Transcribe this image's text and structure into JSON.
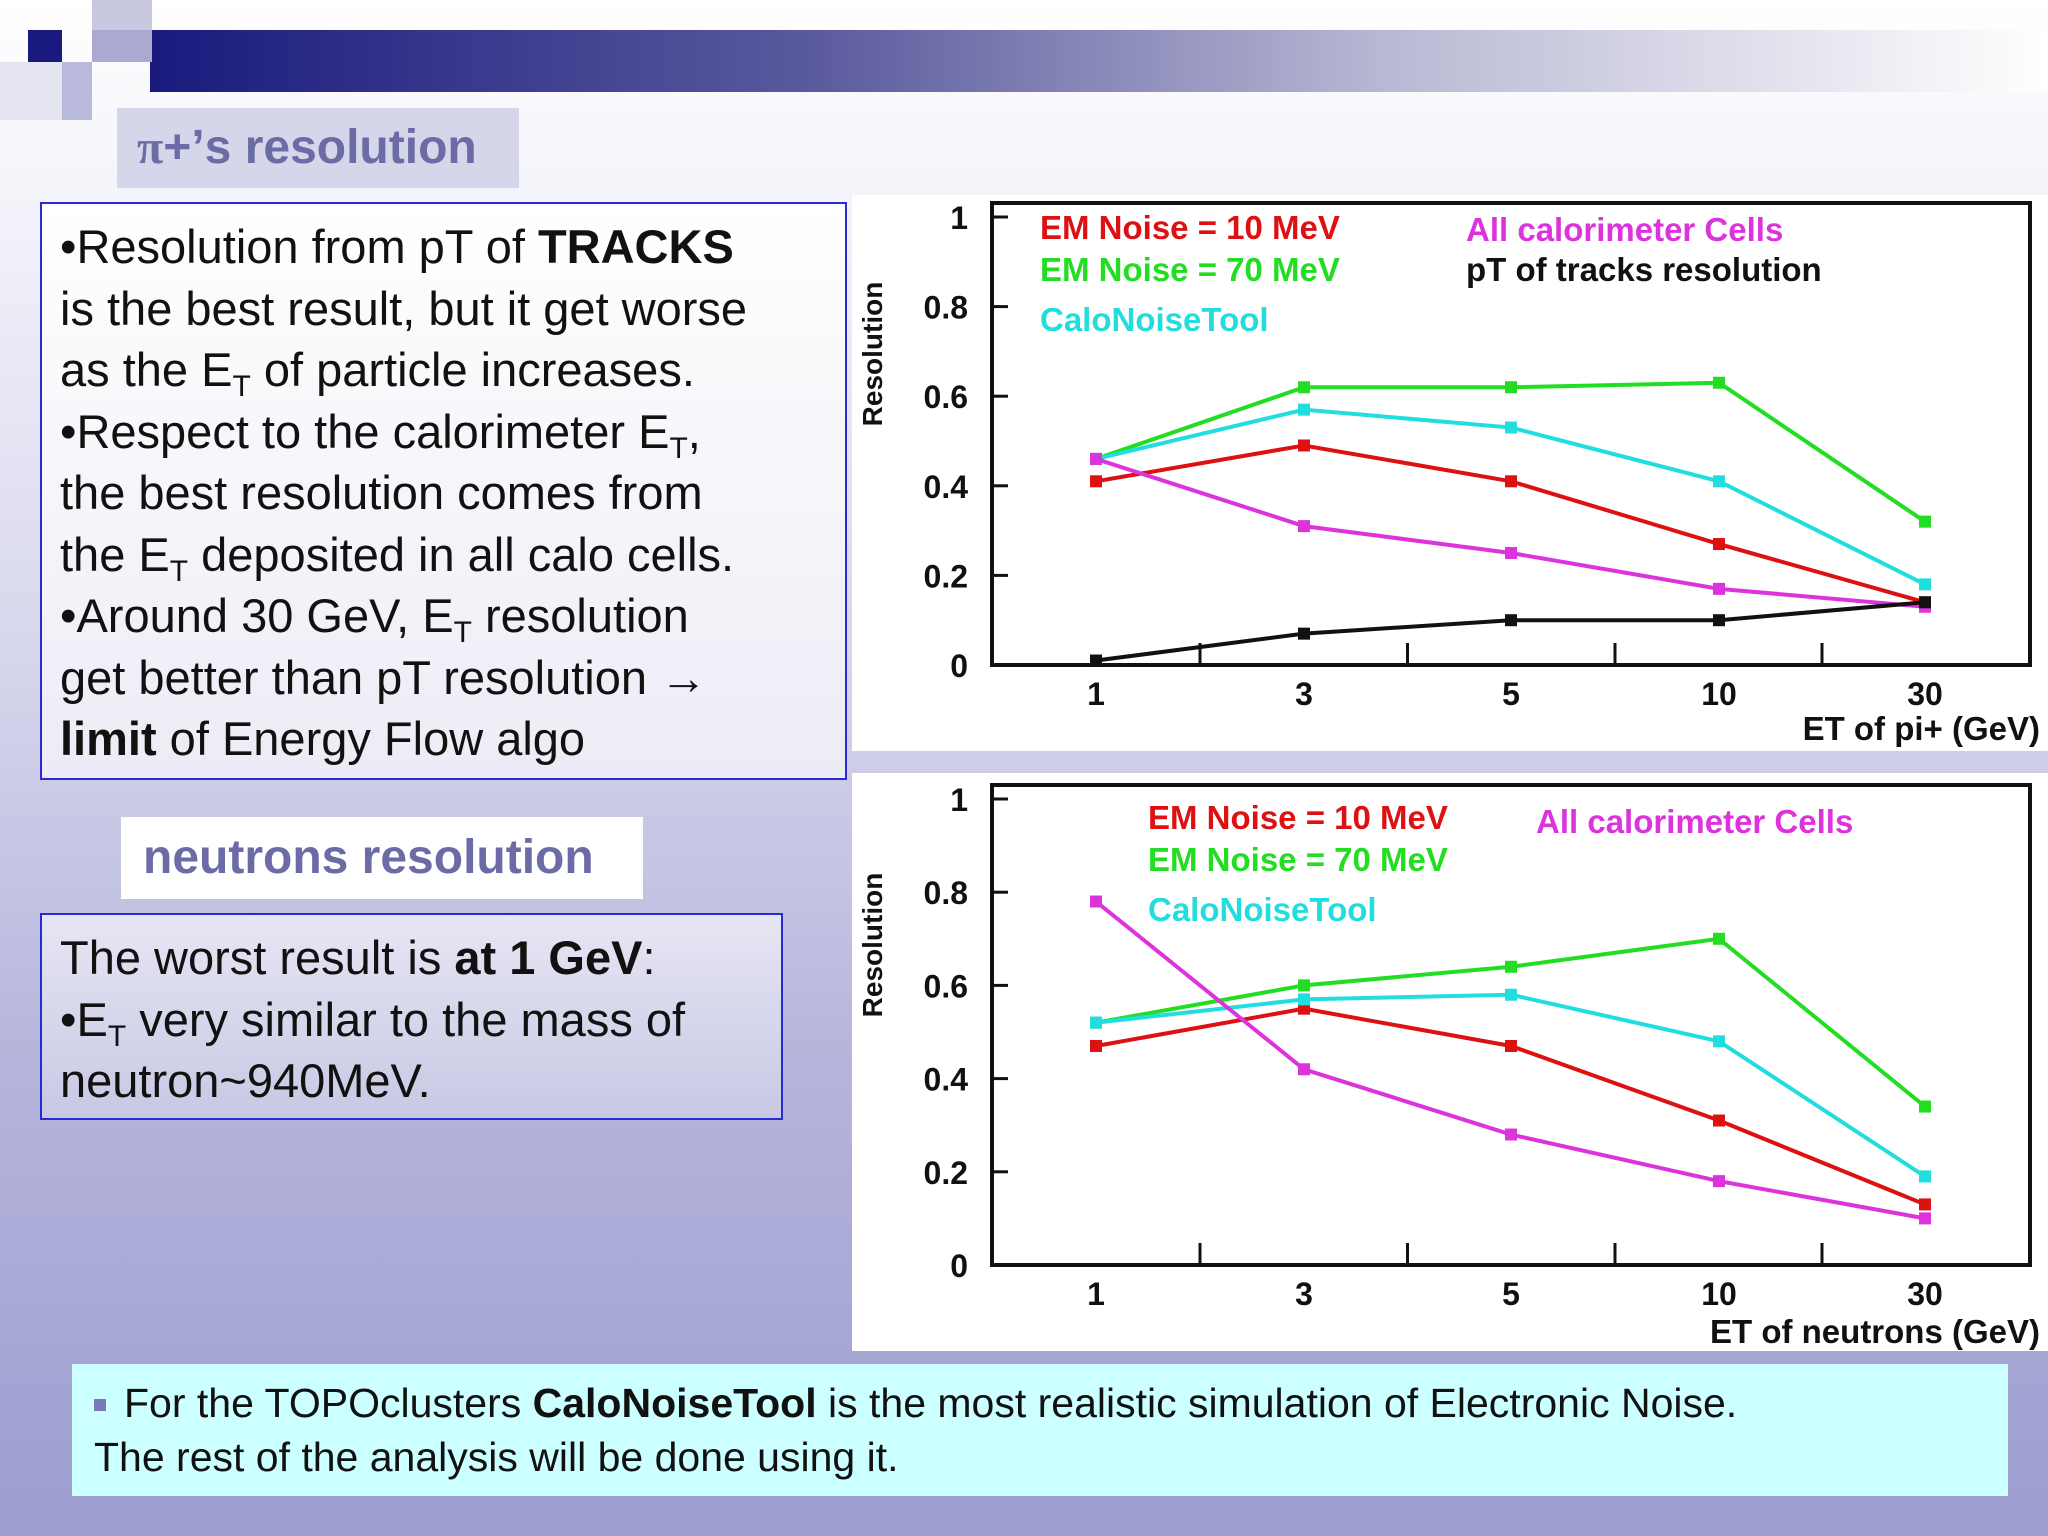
{
  "slide": {
    "title1_symbol": "π",
    "title1_rest": "+’s resolution",
    "title2": "neutrons resolution",
    "box1": {
      "l1a": "•Resolution from pT of ",
      "l1b": "TRACKS",
      "l2": "is the best result, but it get worse",
      "l3a": "as the E",
      "l3sub": "T",
      "l3b": " of particle increases.",
      "l4a": "•Respect to the calorimeter E",
      "l4sub": "T",
      "l4b": ",",
      "l5": "the best resolution comes from",
      "l6a": "the E",
      "l6sub": "T",
      "l6b": " deposited in all calo cells.",
      "l7a": "•Around 30 GeV, E",
      "l7sub": "T",
      "l7b": " resolution",
      "l8": "get better than pT resolution →",
      "l9a": "limit",
      "l9b": " of Energy Flow algo"
    },
    "box2": {
      "l1a": "The worst result is ",
      "l1b": "at 1 GeV",
      "l1c": ":",
      "l2a": "•E",
      "l2sub": "T",
      "l2b": " very similar to the mass of",
      "l3": "neutron~940MeV."
    },
    "bottom": {
      "a": "For the TOPOclusters ",
      "b": "CaloNoiseTool",
      "c": " is the most realistic simulation of Electronic Noise.",
      "line2": "The rest of the analysis will be done using it."
    }
  },
  "chart_data": [
    {
      "type": "line",
      "xlabel": "ET of pi+ (GeV)",
      "ylabel": "Resolution",
      "categories": [
        "1",
        "3",
        "5",
        "10",
        "30"
      ],
      "ylim": [
        0,
        1
      ],
      "yticks": [
        "0",
        "0.2",
        "0.4",
        "0.6",
        "0.8",
        "1"
      ],
      "legend_placement": "top",
      "series": [
        {
          "name": "EM Noise = 10 MeV",
          "color": "#dd1111",
          "values": [
            0.41,
            0.49,
            0.41,
            0.27,
            0.14
          ]
        },
        {
          "name": "EM Noise = 70 MeV",
          "color": "#22dd22",
          "values": [
            0.46,
            0.62,
            0.62,
            0.63,
            0.32
          ]
        },
        {
          "name": "CaloNoiseTool",
          "color": "#22dddd",
          "values": [
            0.46,
            0.57,
            0.53,
            0.41,
            0.18
          ]
        },
        {
          "name": "All calorimeter Cells",
          "color": "#dd33dd",
          "values": [
            0.46,
            0.31,
            0.25,
            0.17,
            0.13
          ]
        },
        {
          "name": "pT of tracks resolution",
          "color": "#111111",
          "values": [
            0.01,
            0.07,
            0.1,
            0.1,
            0.14
          ]
        }
      ]
    },
    {
      "type": "line",
      "xlabel": "ET of neutrons (GeV)",
      "ylabel": "Resolution",
      "categories": [
        "1",
        "3",
        "5",
        "10",
        "30"
      ],
      "ylim": [
        0,
        1
      ],
      "yticks": [
        "0",
        "0.2",
        "0.4",
        "0.6",
        "0.8",
        "1"
      ],
      "legend_placement": "top",
      "series": [
        {
          "name": "EM Noise = 10 MeV",
          "color": "#dd1111",
          "values": [
            0.47,
            0.55,
            0.47,
            0.31,
            0.13
          ]
        },
        {
          "name": "EM Noise = 70 MeV",
          "color": "#22dd22",
          "values": [
            0.52,
            0.6,
            0.64,
            0.7,
            0.34
          ]
        },
        {
          "name": "CaloNoiseTool",
          "color": "#22dddd",
          "values": [
            0.52,
            0.57,
            0.58,
            0.48,
            0.19
          ]
        },
        {
          "name": "All calorimeter Cells",
          "color": "#dd33dd",
          "values": [
            0.78,
            0.42,
            0.28,
            0.18,
            0.1
          ]
        }
      ]
    }
  ]
}
